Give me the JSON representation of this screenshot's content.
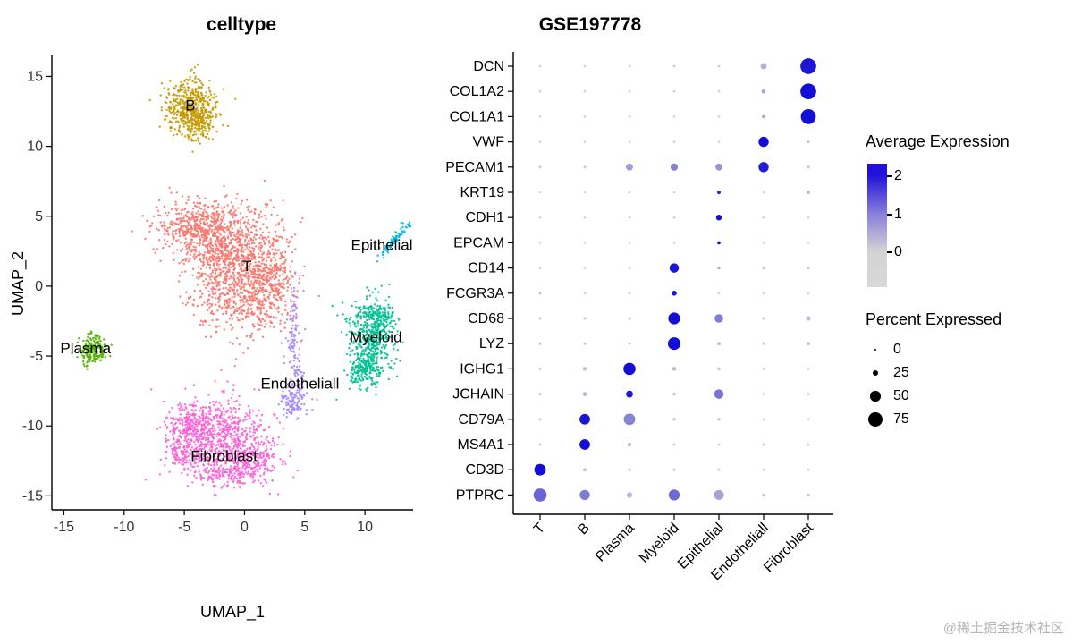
{
  "watermark": "@稀土掘金技术社区",
  "legend": {
    "avg_title": "Average Expression",
    "avg_ticks": [
      "2",
      "1",
      "0"
    ],
    "pct_title": "Percent Expressed",
    "pct_items": [
      {
        "label": "0",
        "pct": 0
      },
      {
        "label": "25",
        "pct": 25
      },
      {
        "label": "50",
        "pct": 50
      },
      {
        "label": "75",
        "pct": 75
      }
    ]
  },
  "chart_data": [
    {
      "type": "scatter",
      "title": "celltype",
      "xlabel": "UMAP_1",
      "ylabel": "UMAP_2",
      "xlim": [
        -16,
        14
      ],
      "ylim": [
        -16,
        16.5
      ],
      "xticks": [
        -15,
        -10,
        -5,
        0,
        5,
        10
      ],
      "yticks": [
        -15,
        -10,
        -5,
        0,
        5,
        10,
        15
      ],
      "clusters": [
        {
          "name": "T",
          "color": "#F8766D",
          "blobs": [
            [
              -0.6,
              1.2,
              2.0,
              2.2,
              950
            ],
            [
              -4.3,
              4.2,
              1.7,
              1.0,
              330
            ],
            [
              -2.5,
              3.2,
              1.5,
              1.3,
              280
            ],
            [
              1.5,
              -0.8,
              1.3,
              1.1,
              200
            ],
            [
              2.6,
              1.5,
              0.8,
              1.6,
              130
            ]
          ],
          "label": {
            "text": "T",
            "x": 0.2,
            "y": 1.4
          }
        },
        {
          "name": "B",
          "color": "#C49A00",
          "blobs": [
            [
              -4.5,
              12.8,
              1.1,
              1.0,
              480
            ],
            [
              -3.9,
              11.6,
              0.6,
              0.5,
              100
            ]
          ],
          "label": {
            "text": "B",
            "x": -4.5,
            "y": 12.9
          }
        },
        {
          "name": "Plasma",
          "color": "#53B400",
          "blobs": [
            [
              -12.6,
              -4.6,
              0.55,
              0.5,
              200
            ]
          ],
          "label": {
            "text": "Plasma",
            "x": -13.2,
            "y": -4.5
          }
        },
        {
          "name": "Myeloid",
          "color": "#00C094",
          "blobs": [
            [
              10.5,
              -3.6,
              0.95,
              1.4,
              500
            ],
            [
              10.0,
              -6.2,
              0.7,
              0.6,
              150
            ],
            [
              11.3,
              -2.2,
              0.5,
              0.6,
              90
            ]
          ],
          "label": {
            "text": "Myeloid",
            "x": 10.9,
            "y": -3.7
          }
        },
        {
          "name": "Epithelial",
          "color": "#00B6EB",
          "blobs": [
            [
              12.4,
              3.3,
              0.9,
              0.15,
              80,
              43
            ]
          ],
          "label": {
            "text": "Epithelial",
            "x": 11.4,
            "y": 2.9
          }
        },
        {
          "name": "Endotheliall",
          "color": "#A58AFF",
          "blobs": [
            [
              4.0,
              -8.2,
              0.6,
              0.55,
              120
            ],
            [
              4.1,
              -3.4,
              0.27,
              1.5,
              90
            ],
            [
              4.5,
              -6.3,
              0.25,
              0.45,
              30
            ]
          ],
          "label": {
            "text": "Endotheliall",
            "x": 4.6,
            "y": -7.0
          }
        },
        {
          "name": "Fibroblast",
          "color": "#FB61D7",
          "blobs": [
            [
              -2.0,
              -10.8,
              2.0,
              1.4,
              700
            ],
            [
              -4.6,
              -9.9,
              0.9,
              0.7,
              170
            ],
            [
              0.6,
              -12.5,
              1.3,
              0.9,
              210
            ],
            [
              -1.5,
              -13.4,
              1.6,
              0.5,
              130
            ],
            [
              -5.0,
              -12.0,
              0.8,
              0.8,
              120
            ]
          ],
          "label": {
            "text": "Fibroblast",
            "x": -1.7,
            "y": -12.2
          }
        }
      ]
    },
    {
      "type": "dotplot",
      "title": "GSE197778",
      "celltypes": [
        "T",
        "B",
        "Plasma",
        "Myeloid",
        "Epithelial",
        "Endotheliall",
        "Fibroblast"
      ],
      "genes": [
        "DCN",
        "COL1A2",
        "COL1A1",
        "VWF",
        "PECAM1",
        "KRT19",
        "CDH1",
        "EPCAM",
        "CD14",
        "FCGR3A",
        "CD68",
        "LYZ",
        "IGHG1",
        "JCHAIN",
        "CD79A",
        "MS4A1",
        "CD3D",
        "PTPRC"
      ],
      "percent_expressed": [
        [
          2,
          2,
          2,
          2,
          2,
          25,
          85
        ],
        [
          2,
          2,
          2,
          2,
          2,
          12,
          85
        ],
        [
          2,
          2,
          2,
          2,
          2,
          8,
          80
        ],
        [
          1,
          1,
          1,
          2,
          2,
          50,
          4
        ],
        [
          4,
          4,
          30,
          32,
          30,
          50,
          4
        ],
        [
          1,
          1,
          2,
          2,
          10,
          2,
          8
        ],
        [
          1,
          1,
          1,
          2,
          22,
          2,
          2
        ],
        [
          1,
          1,
          1,
          1,
          7,
          1,
          1
        ],
        [
          2,
          2,
          2,
          45,
          6,
          3,
          3
        ],
        [
          4,
          2,
          2,
          18,
          2,
          2,
          2
        ],
        [
          4,
          4,
          4,
          60,
          40,
          4,
          15
        ],
        [
          4,
          4,
          4,
          65,
          8,
          4,
          8
        ],
        [
          4,
          12,
          62,
          12,
          6,
          3,
          3
        ],
        [
          4,
          14,
          30,
          6,
          45,
          3,
          3
        ],
        [
          4,
          52,
          58,
          6,
          6,
          3,
          3
        ],
        [
          4,
          52,
          10,
          3,
          3,
          3,
          3
        ],
        [
          58,
          8,
          4,
          4,
          4,
          3,
          3
        ],
        [
          68,
          50,
          22,
          55,
          48,
          6,
          6
        ]
      ],
      "average_expression": [
        [
          0,
          0,
          0,
          0.1,
          0.1,
          0.4,
          2.4
        ],
        [
          0,
          0,
          0,
          0,
          0,
          0.6,
          2.5
        ],
        [
          0,
          0,
          0,
          0,
          0,
          0.5,
          2.5
        ],
        [
          0,
          0,
          0,
          0,
          0,
          2.5,
          0.2
        ],
        [
          0.1,
          0.1,
          0.7,
          1.0,
          0.8,
          2.3,
          0.2
        ],
        [
          0,
          0,
          0,
          0,
          2.2,
          0,
          0.3
        ],
        [
          0,
          0,
          0,
          0,
          2.5,
          0,
          0
        ],
        [
          0,
          0,
          0,
          0,
          2.5,
          0,
          0
        ],
        [
          0,
          0,
          0,
          2.4,
          0.4,
          0.2,
          0.2
        ],
        [
          0.2,
          0,
          0,
          2.4,
          0,
          0,
          0
        ],
        [
          0.1,
          0.1,
          0.1,
          2.5,
          1.1,
          0.1,
          0.3
        ],
        [
          0.1,
          0.1,
          0.1,
          2.5,
          0.3,
          0.1,
          0.2
        ],
        [
          0.1,
          0.2,
          2.5,
          0.3,
          0.2,
          0,
          0
        ],
        [
          0.1,
          0.3,
          2.4,
          0.2,
          1.2,
          0,
          0
        ],
        [
          0.1,
          2.4,
          1.0,
          0.1,
          0.2,
          0,
          0
        ],
        [
          0.1,
          2.5,
          0.4,
          0,
          0,
          0,
          0
        ],
        [
          2.5,
          0.2,
          0.1,
          0.1,
          0.1,
          0,
          0
        ],
        [
          1.4,
          1.1,
          0.3,
          1.3,
          0.6,
          0.1,
          0.1
        ]
      ],
      "color_low": "#d3d3d3",
      "color_high": "#140dd6",
      "expr_range": [
        0,
        2.5
      ]
    }
  ]
}
